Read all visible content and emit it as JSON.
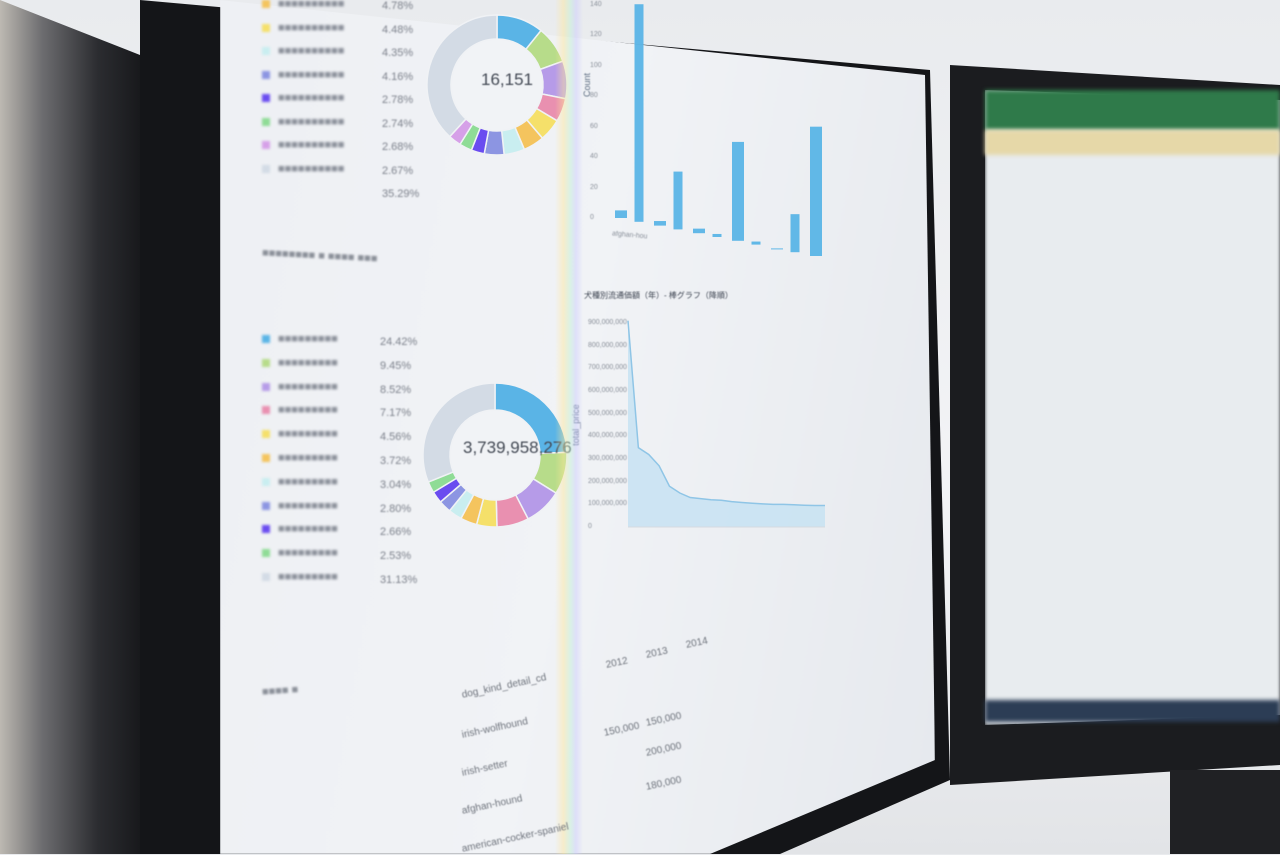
{
  "colors": {
    "blue": "#5ab4e6",
    "green": "#b7dc8a",
    "purple": "#b69be8",
    "pink": "#e990b0",
    "yellow": "#f5e06a",
    "orange": "#f4c45e",
    "cyan": "#c9eef0",
    "periwinkle": "#8c95e2",
    "indigo": "#6a4cf0",
    "lightgreen": "#8fdc96",
    "violet": "#d6a0e8",
    "gray": "#d3dbe5"
  },
  "donut_top": {
    "center_value": "16,151",
    "legend_pcts": [
      "4.78%",
      "4.48%",
      "4.35%",
      "4.16%",
      "2.78%",
      "2.74%",
      "2.68%",
      "2.67%",
      "35.29%"
    ],
    "slices": [
      {
        "c": "blue",
        "v": 10
      },
      {
        "c": "green",
        "v": 8
      },
      {
        "c": "purple",
        "v": 8
      },
      {
        "c": "pink",
        "v": 5
      },
      {
        "c": "yellow",
        "v": 4.8
      },
      {
        "c": "orange",
        "v": 4.5
      },
      {
        "c": "cyan",
        "v": 4.4
      },
      {
        "c": "periwinkle",
        "v": 4.2
      },
      {
        "c": "indigo",
        "v": 2.8
      },
      {
        "c": "lightgreen",
        "v": 2.7
      },
      {
        "c": "violet",
        "v": 2.7
      },
      {
        "c": "gray",
        "v": 35.3
      }
    ]
  },
  "donut_bottom": {
    "center_value": "3,739,958,276",
    "legend_pcts": [
      "24.42%",
      "9.45%",
      "8.52%",
      "7.17%",
      "4.56%",
      "3.72%",
      "3.04%",
      "2.80%",
      "2.66%",
      "2.53%",
      "31.13%"
    ],
    "slices": [
      {
        "c": "blue",
        "v": 24.42
      },
      {
        "c": "green",
        "v": 9.45
      },
      {
        "c": "purple",
        "v": 8.52
      },
      {
        "c": "pink",
        "v": 7.17
      },
      {
        "c": "yellow",
        "v": 4.56
      },
      {
        "c": "orange",
        "v": 3.72
      },
      {
        "c": "cyan",
        "v": 3.04
      },
      {
        "c": "periwinkle",
        "v": 2.8
      },
      {
        "c": "indigo",
        "v": 2.66
      },
      {
        "c": "lightgreen",
        "v": 2.53
      },
      {
        "c": "gray",
        "v": 31.13
      }
    ]
  },
  "bar_chart": {
    "ylabel": "Count",
    "yticks": [
      "0",
      "20",
      "40",
      "60",
      "80",
      "100",
      "120",
      "140"
    ],
    "ymax": 140,
    "values": [
      5,
      143,
      3,
      38,
      3,
      2,
      65,
      2,
      0,
      25,
      85
    ],
    "first_label": "afghan-hou"
  },
  "line_chart": {
    "title": "犬種別流通価額（年）- 棒グラフ（降順）",
    "ylabel": "total_price",
    "yticks": [
      "0",
      "100,000,000",
      "200,000,000",
      "300,000,000",
      "400,000,000",
      "500,000,000",
      "600,000,000",
      "700,000,000",
      "800,000,000",
      "900,000,000"
    ],
    "ymax": 900000000,
    "values": [
      910000000,
      350000000,
      320000000,
      270000000,
      180000000,
      150000000,
      130000000,
      125000000,
      120000000,
      118000000,
      112000000,
      108000000,
      105000000,
      102000000,
      100000000,
      100000000,
      98000000,
      96000000,
      95000000,
      95000000
    ]
  },
  "table": {
    "header": "dog_kind_detail_cd",
    "rows": [
      "irish-wolfhound",
      "irish-setter",
      "afghan-hound",
      "american-cocker-spaniel"
    ],
    "years": [
      "2012",
      "2013",
      "2014"
    ],
    "values": [
      "150,000",
      "150,000",
      "200,000",
      "180,000"
    ]
  }
}
